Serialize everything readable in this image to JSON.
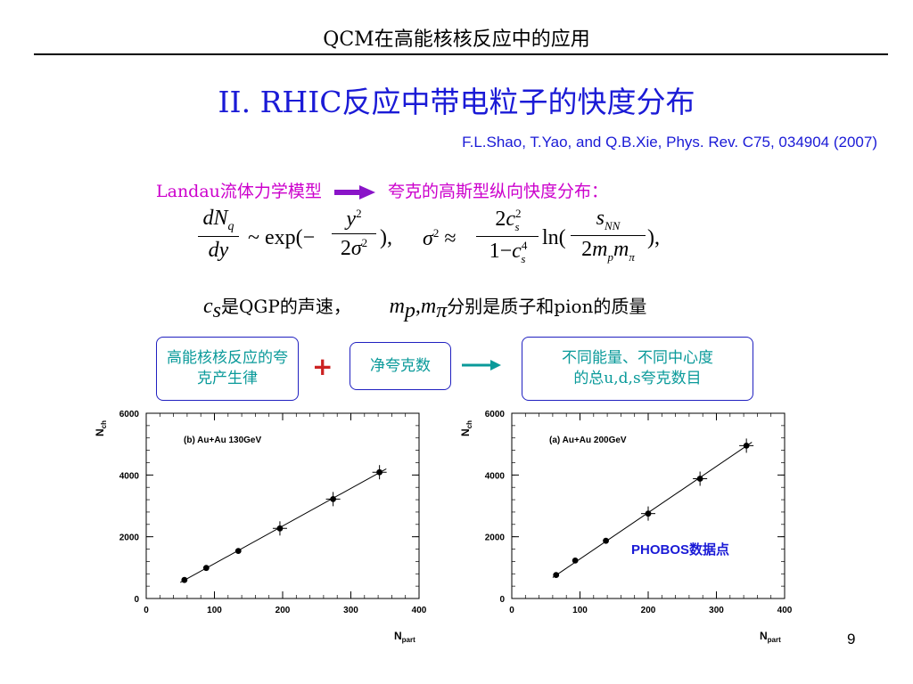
{
  "header": {
    "title": "QCM在高能核核反应中的应用"
  },
  "slide": {
    "title": "II. RHIC反应中带电粒子的快度分布",
    "reference": "F.L.Shao, T.Yao, and Q.B.Xie,  Phys. Rev. C75, 034904 (2007)",
    "model_label": "Landau流体力学模型",
    "model_result": "夸克的高斯型纵向快度分布：",
    "legend_cs_desc": "是QGP的声速，",
    "legend_m_desc": "分别是质子和pion的质量"
  },
  "flow": {
    "box1": "高能核核反应的夸克产生律",
    "plus": "+",
    "box2": "净夸克数",
    "box3_line1": "不同能量、不同中心度",
    "box3_line2": "的总u,d,s夸克数目"
  },
  "chart_data": [
    {
      "type": "scatter",
      "annotation": "(b) Au+Au 130GeV",
      "xlabel": "N_part",
      "ylabel": "N_ch",
      "xlim": [
        0,
        400
      ],
      "ylim": [
        0,
        6000
      ],
      "x_ticks": [
        "0",
        "100",
        "200",
        "300",
        "400"
      ],
      "y_ticks": [
        "0",
        "2000",
        "4000",
        "6000"
      ],
      "points": [
        [
          56,
          600
        ],
        [
          88,
          990
        ],
        [
          135,
          1540
        ],
        [
          196,
          2270
        ],
        [
          274,
          3220
        ],
        [
          342,
          4090
        ]
      ],
      "fit_line": [
        [
          50,
          520
        ],
        [
          352,
          4200
        ]
      ]
    },
    {
      "type": "scatter",
      "annotation": "(a) Au+Au 200GeV",
      "xlabel": "N_part",
      "ylabel": "N_ch",
      "xlim": [
        0,
        400
      ],
      "ylim": [
        0,
        6000
      ],
      "x_ticks": [
        "0",
        "100",
        "200",
        "300",
        "400"
      ],
      "y_ticks": [
        "0",
        "2000",
        "4000",
        "6000"
      ],
      "points": [
        [
          65,
          760
        ],
        [
          93,
          1230
        ],
        [
          138,
          1870
        ],
        [
          200,
          2750
        ],
        [
          276,
          3880
        ],
        [
          344,
          4950
        ]
      ],
      "fit_line": [
        [
          60,
          680
        ],
        [
          352,
          5060
        ]
      ],
      "label": "PHOBOS数据点"
    }
  ],
  "footer": {
    "page_number": "9"
  }
}
